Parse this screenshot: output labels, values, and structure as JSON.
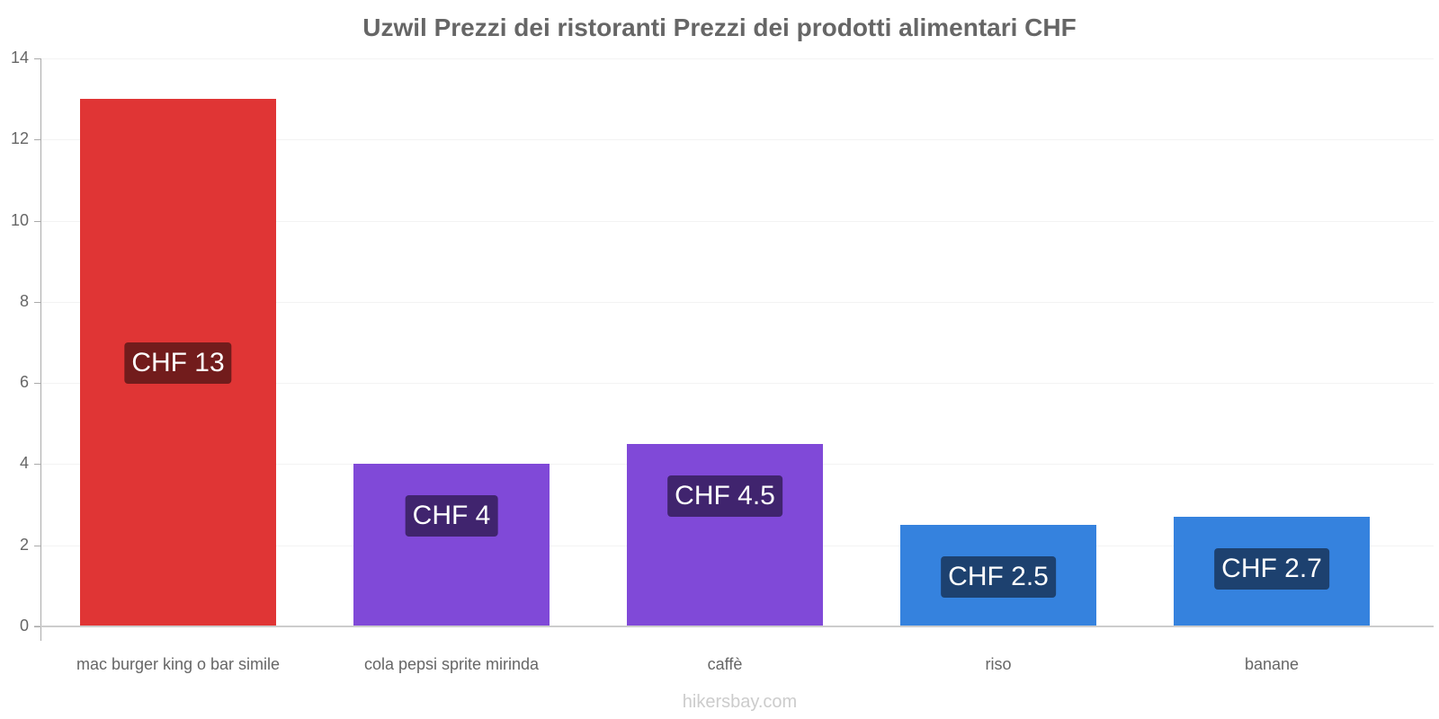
{
  "chart_data": {
    "type": "bar",
    "title": "Uzwil Prezzi dei ristoranti Prezzi dei prodotti alimentari CHF",
    "categories": [
      "mac burger king o bar simile",
      "cola pepsi sprite mirinda",
      "caffè",
      "riso",
      "banane"
    ],
    "values": [
      13,
      4,
      4.5,
      2.5,
      2.7
    ],
    "value_labels": [
      "CHF 13",
      "CHF 4",
      "CHF 4.5",
      "CHF 2.5",
      "CHF 2.7"
    ],
    "colors": [
      "#e03535",
      "#8049d8",
      "#8049d8",
      "#3582de",
      "#3582de"
    ],
    "label_bg_colors": [
      "#721c1c",
      "#40246e",
      "#40246e",
      "#1d416f",
      "#1d416f"
    ],
    "xlabel": "",
    "ylabel": "",
    "ylim": [
      0,
      14
    ],
    "yticks": [
      0,
      2,
      4,
      6,
      8,
      10,
      12,
      14
    ],
    "grid": true,
    "legend": "none"
  },
  "credit": "hikersbay.com"
}
